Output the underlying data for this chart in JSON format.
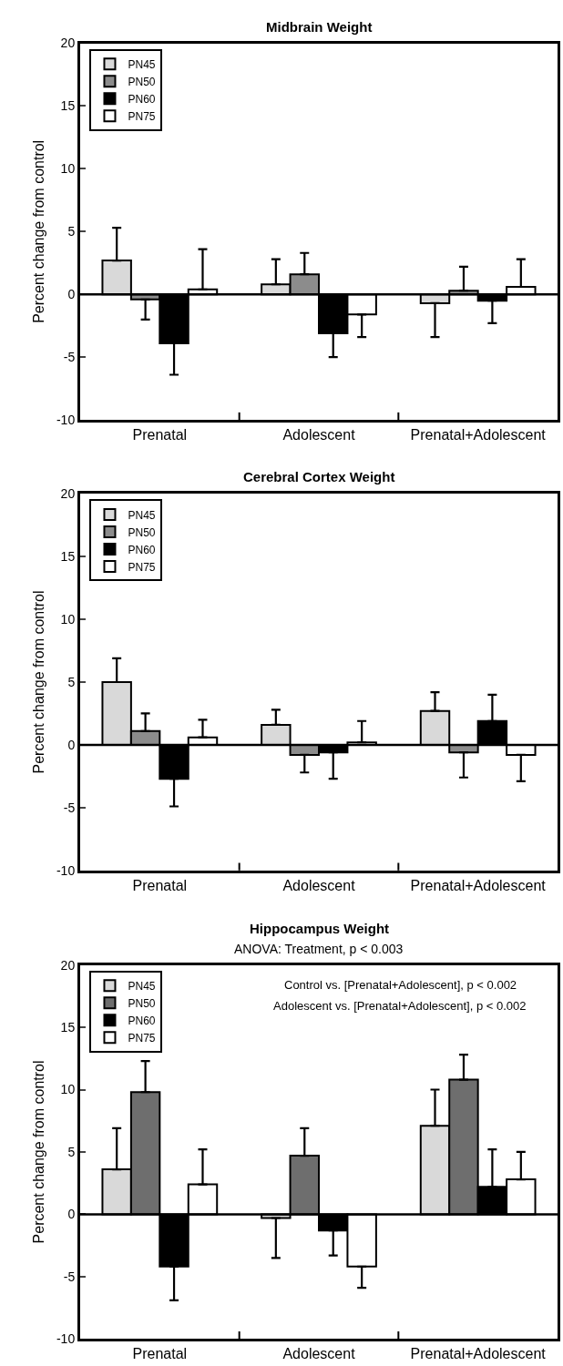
{
  "chart_data": [
    {
      "type": "bar",
      "title": "Midbrain Weight",
      "ylabel": "Percent change from control",
      "categories": [
        "Prenatal",
        "Adolescent",
        "Prenatal+Adolescent"
      ],
      "ylim": [
        -10,
        20
      ],
      "yticks": [
        -10,
        -5,
        0,
        5,
        10,
        15,
        20
      ],
      "legend": "top left",
      "ref_lines": [
        {
          "axis": "y",
          "value": 0,
          "color": "#000000"
        }
      ],
      "series": [
        {
          "name": "PN45",
          "color": "#d9d9d9",
          "values": [
            2.7,
            0.8,
            -0.7
          ],
          "errors": [
            [
              2.7,
              5.3
            ],
            [
              0.8,
              2.8
            ],
            [
              -3.4,
              -0.7
            ]
          ]
        },
        {
          "name": "PN50",
          "color": "#8c8c8c",
          "values": [
            -0.4,
            1.6,
            0.3
          ],
          "errors": [
            [
              -2.0,
              -0.4
            ],
            [
              1.6,
              3.3
            ],
            [
              0.3,
              2.2
            ]
          ]
        },
        {
          "name": "PN60",
          "color": "#000000",
          "values": [
            -3.9,
            -3.1,
            -0.5
          ],
          "errors": [
            [
              -6.4,
              -3.9
            ],
            [
              -5.0,
              -3.1
            ],
            [
              -2.3,
              -0.5
            ]
          ]
        },
        {
          "name": "PN75",
          "color": "#ffffff",
          "values": [
            0.4,
            -1.6,
            0.6
          ],
          "errors": [
            [
              0.4,
              3.6
            ],
            [
              -3.4,
              -1.6
            ],
            [
              0.6,
              2.8
            ]
          ]
        }
      ]
    },
    {
      "type": "bar",
      "title": "Cerebral Cortex Weight",
      "ylabel": "Percent change from control",
      "categories": [
        "Prenatal",
        "Adolescent",
        "Prenatal+Adolescent"
      ],
      "ylim": [
        -10,
        20
      ],
      "yticks": [
        -10,
        -5,
        0,
        5,
        10,
        15,
        20
      ],
      "legend": "top left",
      "ref_lines": [
        {
          "axis": "y",
          "value": 0,
          "color": "#000000"
        }
      ],
      "series": [
        {
          "name": "PN45",
          "color": "#d9d9d9",
          "values": [
            5.0,
            1.6,
            2.7
          ],
          "errors": [
            [
              5.0,
              6.9
            ],
            [
              1.6,
              2.8
            ],
            [
              2.7,
              4.2
            ]
          ]
        },
        {
          "name": "PN50",
          "color": "#8c8c8c",
          "values": [
            1.1,
            -0.8,
            -0.6
          ],
          "errors": [
            [
              1.1,
              2.5
            ],
            [
              -2.2,
              -0.8
            ],
            [
              -2.6,
              -0.6
            ]
          ]
        },
        {
          "name": "PN60",
          "color": "#000000",
          "values": [
            -2.7,
            -0.6,
            1.9
          ],
          "errors": [
            [
              -4.9,
              -2.7
            ],
            [
              -2.7,
              -0.6
            ],
            [
              1.9,
              4.0
            ]
          ]
        },
        {
          "name": "PN75",
          "color": "#ffffff",
          "values": [
            0.6,
            0.2,
            -0.8
          ],
          "errors": [
            [
              0.6,
              2.0
            ],
            [
              0.2,
              1.9
            ],
            [
              -2.9,
              -0.8
            ]
          ]
        }
      ]
    },
    {
      "type": "bar",
      "title": "Hippocampus Weight",
      "subtitle": "ANOVA: Treatment, p < 0.003",
      "ylabel": "Percent change from control",
      "categories": [
        "Prenatal",
        "Adolescent",
        "Prenatal+Adolescent"
      ],
      "ylim": [
        -10,
        20
      ],
      "yticks": [
        -10,
        -5,
        0,
        5,
        10,
        15,
        20
      ],
      "legend": "top left",
      "ref_lines": [
        {
          "axis": "y",
          "value": 0,
          "color": "#000000"
        }
      ],
      "annotations": [
        "Control vs. [Prenatal+Adolescent], p < 0.002",
        "Adolescent vs. [Prenatal+Adolescent], p < 0.002"
      ],
      "series": [
        {
          "name": "PN45",
          "color": "#d9d9d9",
          "values": [
            3.6,
            -0.3,
            7.1
          ],
          "errors": [
            [
              3.6,
              6.9
            ],
            [
              -3.5,
              -0.3
            ],
            [
              7.1,
              10.0
            ]
          ]
        },
        {
          "name": "PN50",
          "color": "#6e6e6e",
          "values": [
            9.8,
            4.7,
            10.8
          ],
          "errors": [
            [
              9.8,
              12.3
            ],
            [
              4.7,
              6.9
            ],
            [
              10.8,
              12.8
            ]
          ]
        },
        {
          "name": "PN60",
          "color": "#000000",
          "values": [
            -4.2,
            -1.3,
            2.2
          ],
          "errors": [
            [
              -6.9,
              -4.2
            ],
            [
              -3.3,
              -1.3
            ],
            [
              2.2,
              5.2
            ]
          ]
        },
        {
          "name": "PN75",
          "color": "#ffffff",
          "values": [
            2.4,
            -4.2,
            2.8
          ],
          "errors": [
            [
              2.4,
              5.2
            ],
            [
              -5.9,
              -4.2
            ],
            [
              2.8,
              5.0
            ]
          ]
        }
      ]
    }
  ]
}
